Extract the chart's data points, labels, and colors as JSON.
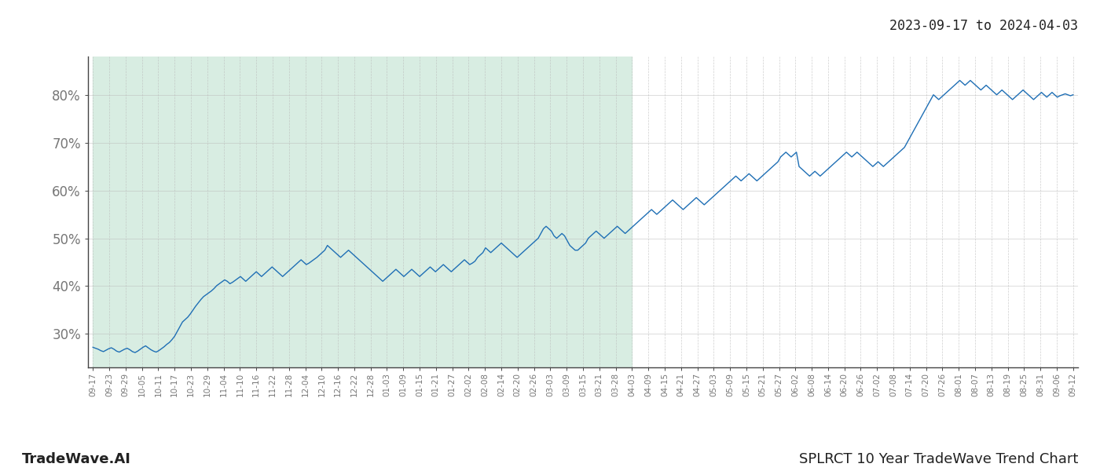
{
  "title_date_range": "2023-09-17 to 2024-04-03",
  "bottom_left_text": "TradeWave.AI",
  "bottom_right_text": "SPLRCT 10 Year TradeWave Trend Chart",
  "y_ticks": [
    30,
    40,
    50,
    60,
    70,
    80
  ],
  "y_min": 23,
  "y_max": 88,
  "line_color": "#1f6fb5",
  "line_width": 1.0,
  "shaded_color": "#d8ede2",
  "shaded_alpha": 1.0,
  "background_color": "#ffffff",
  "grid_color": "#bbbbbb",
  "grid_alpha": 0.7,
  "tick_label_color": "#777777",
  "x_labels": [
    "09-17",
    "09-23",
    "09-29",
    "10-05",
    "10-11",
    "10-17",
    "10-23",
    "10-29",
    "11-04",
    "11-10",
    "11-16",
    "11-22",
    "11-28",
    "12-04",
    "12-10",
    "12-16",
    "12-22",
    "12-28",
    "01-03",
    "01-09",
    "01-15",
    "01-21",
    "01-27",
    "02-02",
    "02-08",
    "02-14",
    "02-20",
    "02-26",
    "03-03",
    "03-09",
    "03-15",
    "03-21",
    "03-28",
    "04-03",
    "04-09",
    "04-15",
    "04-21",
    "04-27",
    "05-03",
    "05-09",
    "05-15",
    "05-21",
    "05-27",
    "06-02",
    "06-08",
    "06-14",
    "06-20",
    "06-26",
    "07-02",
    "07-08",
    "07-14",
    "07-20",
    "07-26",
    "08-01",
    "08-07",
    "08-13",
    "08-19",
    "08-25",
    "08-31",
    "09-06",
    "09-12"
  ],
  "shaded_x_start_label": "09-17",
  "shaded_x_end_label": "04-03",
  "y_values": [
    27.2,
    27.0,
    26.8,
    26.5,
    26.3,
    26.6,
    26.9,
    27.1,
    26.8,
    26.4,
    26.2,
    26.5,
    26.8,
    27.0,
    26.7,
    26.3,
    26.1,
    26.4,
    26.8,
    27.2,
    27.5,
    27.1,
    26.7,
    26.4,
    26.2,
    26.5,
    26.9,
    27.3,
    27.8,
    28.2,
    28.8,
    29.5,
    30.5,
    31.5,
    32.5,
    33.0,
    33.5,
    34.2,
    35.0,
    35.8,
    36.5,
    37.2,
    37.8,
    38.2,
    38.6,
    39.0,
    39.5,
    40.1,
    40.5,
    40.9,
    41.3,
    41.0,
    40.5,
    40.8,
    41.2,
    41.6,
    42.0,
    41.5,
    41.0,
    41.5,
    42.0,
    42.5,
    43.0,
    42.5,
    42.0,
    42.5,
    43.0,
    43.5,
    44.0,
    43.5,
    43.0,
    42.5,
    42.0,
    42.5,
    43.0,
    43.5,
    44.0,
    44.5,
    45.0,
    45.5,
    45.0,
    44.5,
    44.8,
    45.2,
    45.6,
    46.0,
    46.5,
    47.0,
    47.5,
    48.5,
    48.0,
    47.5,
    47.0,
    46.5,
    46.0,
    46.5,
    47.0,
    47.5,
    47.0,
    46.5,
    46.0,
    45.5,
    45.0,
    44.5,
    44.0,
    43.5,
    43.0,
    42.5,
    42.0,
    41.5,
    41.0,
    41.5,
    42.0,
    42.5,
    43.0,
    43.5,
    43.0,
    42.5,
    42.0,
    42.5,
    43.0,
    43.5,
    43.0,
    42.5,
    42.0,
    42.5,
    43.0,
    43.5,
    44.0,
    43.5,
    43.0,
    43.5,
    44.0,
    44.5,
    44.0,
    43.5,
    43.0,
    43.5,
    44.0,
    44.5,
    45.0,
    45.5,
    45.0,
    44.5,
    44.8,
    45.2,
    46.0,
    46.5,
    47.0,
    48.0,
    47.5,
    47.0,
    47.5,
    48.0,
    48.5,
    49.0,
    48.5,
    48.0,
    47.5,
    47.0,
    46.5,
    46.0,
    46.5,
    47.0,
    47.5,
    48.0,
    48.5,
    49.0,
    49.5,
    50.0,
    51.0,
    52.0,
    52.5,
    52.0,
    51.5,
    50.5,
    50.0,
    50.5,
    51.0,
    50.5,
    49.5,
    48.5,
    48.0,
    47.5,
    47.5,
    48.0,
    48.5,
    49.0,
    50.0,
    50.5,
    51.0,
    51.5,
    51.0,
    50.5,
    50.0,
    50.5,
    51.0,
    51.5,
    52.0,
    52.5,
    52.0,
    51.5,
    51.0,
    51.5,
    52.0,
    52.5,
    53.0,
    53.5,
    54.0,
    54.5,
    55.0,
    55.5,
    56.0,
    55.5,
    55.0,
    55.5,
    56.0,
    56.5,
    57.0,
    57.5,
    58.0,
    57.5,
    57.0,
    56.5,
    56.0,
    56.5,
    57.0,
    57.5,
    58.0,
    58.5,
    58.0,
    57.5,
    57.0,
    57.5,
    58.0,
    58.5,
    59.0,
    59.5,
    60.0,
    60.5,
    61.0,
    61.5,
    62.0,
    62.5,
    63.0,
    62.5,
    62.0,
    62.5,
    63.0,
    63.5,
    63.0,
    62.5,
    62.0,
    62.5,
    63.0,
    63.5,
    64.0,
    64.5,
    65.0,
    65.5,
    66.0,
    67.0,
    67.5,
    68.0,
    67.5,
    67.0,
    67.5,
    68.0,
    65.0,
    64.5,
    64.0,
    63.5,
    63.0,
    63.5,
    64.0,
    63.5,
    63.0,
    63.5,
    64.0,
    64.5,
    65.0,
    65.5,
    66.0,
    66.5,
    67.0,
    67.5,
    68.0,
    67.5,
    67.0,
    67.5,
    68.0,
    67.5,
    67.0,
    66.5,
    66.0,
    65.5,
    65.0,
    65.5,
    66.0,
    65.5,
    65.0,
    65.5,
    66.0,
    66.5,
    67.0,
    67.5,
    68.0,
    68.5,
    69.0,
    70.0,
    71.0,
    72.0,
    73.0,
    74.0,
    75.0,
    76.0,
    77.0,
    78.0,
    79.0,
    80.0,
    79.5,
    79.0,
    79.5,
    80.0,
    80.5,
    81.0,
    81.5,
    82.0,
    82.5,
    83.0,
    82.5,
    82.0,
    82.5,
    83.0,
    82.5,
    82.0,
    81.5,
    81.0,
    81.5,
    82.0,
    81.5,
    81.0,
    80.5,
    80.0,
    80.5,
    81.0,
    80.5,
    80.0,
    79.5,
    79.0,
    79.5,
    80.0,
    80.5,
    81.0,
    80.5,
    80.0,
    79.5,
    79.0,
    79.5,
    80.0,
    80.5,
    80.0,
    79.5,
    80.0,
    80.5,
    80.0,
    79.5,
    79.8,
    80.0,
    80.2,
    80.0,
    79.8,
    80.0
  ]
}
